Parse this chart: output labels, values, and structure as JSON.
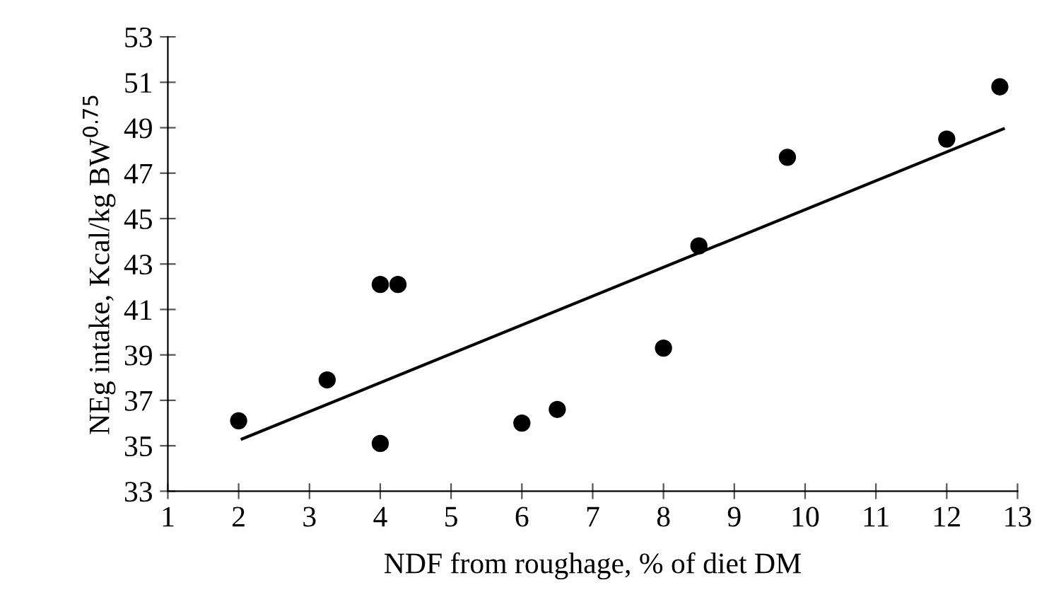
{
  "chart_data": {
    "type": "scatter",
    "xlabel": "NDF from roughage, % of diet DM",
    "ylabel": "NEg intake, Kcal/kg BW$^{0.75}$",
    "xlim": [
      1,
      13
    ],
    "xticks": [
      1,
      2,
      3,
      4,
      5,
      6,
      7,
      8,
      9,
      10,
      11,
      12,
      13
    ],
    "ylim": [
      33,
      53
    ],
    "yticks": [
      33,
      35,
      37,
      39,
      41,
      43,
      45,
      47,
      49,
      51,
      53
    ],
    "grid": false,
    "series": [
      {
        "color": "#000000",
        "marker": "circle",
        "x": [
          2.0,
          3.25,
          4.0,
          4.25,
          4.0,
          6.0,
          6.5,
          8.0,
          8.5,
          9.75,
          12.0,
          12.75
        ],
        "values": [
          36.1,
          37.9,
          42.1,
          42.1,
          35.1,
          36.0,
          36.6,
          39.3,
          43.8,
          47.7,
          48.5,
          50.8
        ]
      },
      {
        "type": "line",
        "color": "#000000",
        "x": [
          2.05,
          12.8
        ],
        "values": [
          35.3,
          48.95
        ]
      }
    ]
  }
}
